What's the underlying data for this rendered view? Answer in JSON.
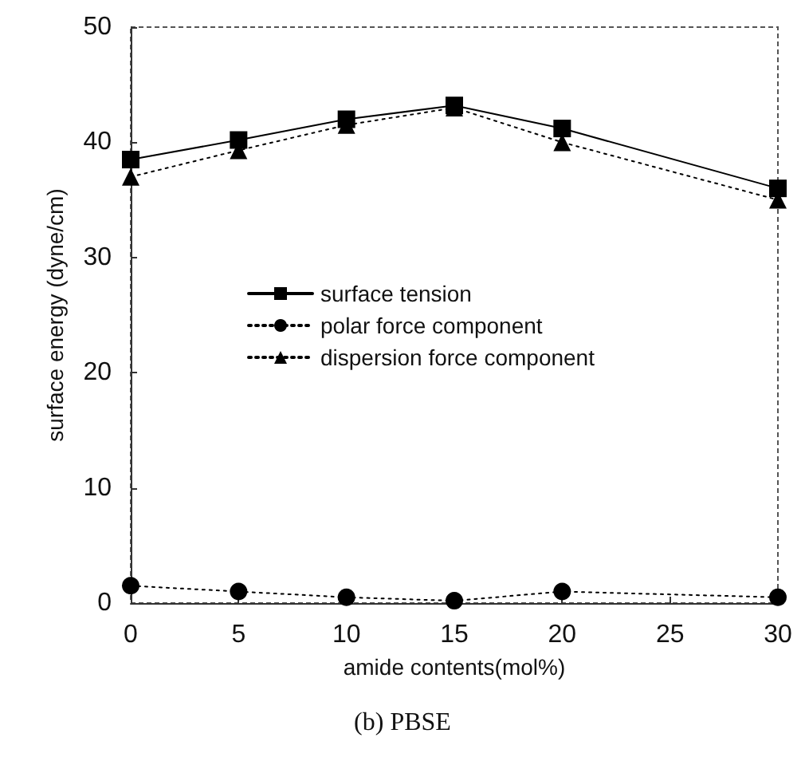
{
  "chart_data": {
    "type": "line",
    "xlabel": "amide contents(mol%)",
    "ylabel": "surface energy (dyne/cm)",
    "annotations": [
      "(b) PBSE"
    ],
    "x": [
      0,
      5,
      10,
      15,
      20,
      30
    ],
    "series": [
      {
        "name": "surface tension",
        "color": "#000000",
        "marker": "square",
        "line_style": "solid",
        "values": [
          38.5,
          40.2,
          42,
          43.2,
          41.2,
          36
        ]
      },
      {
        "name": "polar force component",
        "color": "#000000",
        "marker": "circle",
        "line_style": "dotted",
        "values": [
          1.5,
          1.0,
          0.5,
          0.2,
          1.0,
          0.5
        ]
      },
      {
        "name": "dispersion force component",
        "color": "#000000",
        "marker": "triangle",
        "line_style": "dotted",
        "values": [
          37,
          39.3,
          41.5,
          43,
          40,
          35
        ]
      }
    ],
    "xlim": [
      0,
      30
    ],
    "xticks": [
      0,
      5,
      10,
      15,
      20,
      25,
      30
    ],
    "ylim": [
      0,
      50
    ],
    "yticks": [
      0,
      10,
      20,
      30,
      40,
      50
    ],
    "grid": false,
    "legend": "center"
  }
}
